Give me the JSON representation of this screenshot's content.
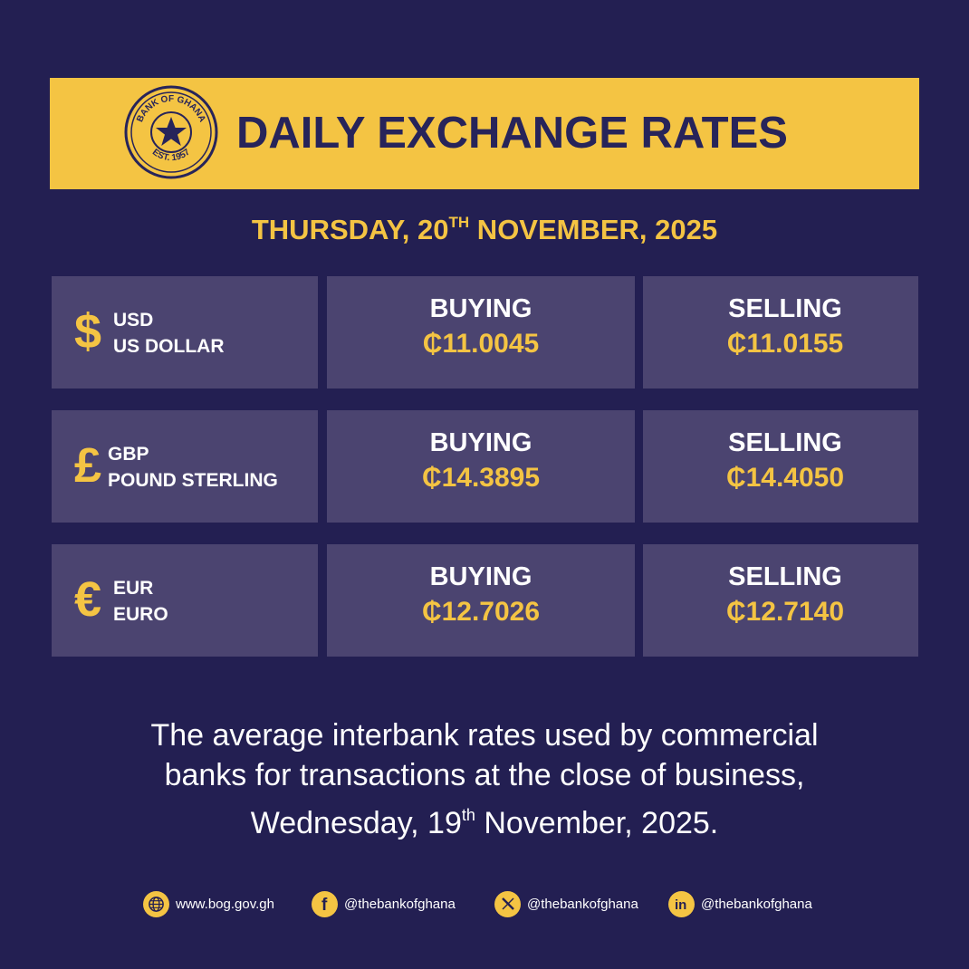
{
  "banner": {
    "title": "DAILY EXCHANGE RATES",
    "seal_text_top": "BANK OF GHANA",
    "seal_text_bottom": "EST. 1957"
  },
  "date": {
    "prefix": "THURSDAY, 20",
    "suffix": "TH",
    "rest": " NOVEMBER, 2025"
  },
  "rates": [
    {
      "symbol": "$",
      "code": "USD",
      "name": "US DOLLAR",
      "buying_label": "BUYING",
      "buying": "₵11.0045",
      "selling_label": "SELLING",
      "selling": "₵11.0155"
    },
    {
      "symbol": "£",
      "code": "GBP",
      "name": "POUND STERLING",
      "buying_label": "BUYING",
      "buying": "₵14.3895",
      "selling_label": "SELLING",
      "selling": "₵14.4050"
    },
    {
      "symbol": "€",
      "code": "EUR",
      "name": "EURO",
      "buying_label": "BUYING",
      "buying": "₵12.7026",
      "selling_label": "SELLING",
      "selling": "₵12.7140"
    }
  ],
  "note": {
    "line1": "The average interbank rates used by commercial",
    "line2": "banks for transactions at the close of business,",
    "line3_a": "Wednesday, 19",
    "line3_sup": "th",
    "line3_b": " November, 2025."
  },
  "footer": {
    "website": "www.bog.gov.gh",
    "facebook": "@thebankofghana",
    "x": "@thebankofghana",
    "linkedin": "@thebankofghana"
  },
  "colors": {
    "background": "#231f52",
    "accent": "#f4c443",
    "panel": "#4b4470"
  },
  "icons": [
    "globe-icon",
    "facebook-icon",
    "x-icon",
    "linkedin-icon",
    "star-icon"
  ]
}
